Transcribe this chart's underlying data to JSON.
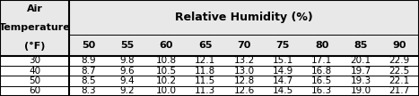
{
  "col_header_main": "Relative Humidity (%)",
  "col_header_sub": [
    "50",
    "55",
    "60",
    "65",
    "70",
    "75",
    "80",
    "85",
    "90"
  ],
  "row_header_label": [
    "Air",
    "Temperature",
    "(°F)"
  ],
  "row_labels": [
    "30",
    "40",
    "50",
    "60"
  ],
  "table_data": [
    [
      8.9,
      9.8,
      10.8,
      12.1,
      13.2,
      15.1,
      17.1,
      20.1,
      22.9
    ],
    [
      8.7,
      9.6,
      10.5,
      11.8,
      13.0,
      14.9,
      16.8,
      19.7,
      22.5
    ],
    [
      8.5,
      9.4,
      10.2,
      11.5,
      12.8,
      14.7,
      16.5,
      19.3,
      22.1
    ],
    [
      8.3,
      9.2,
      10.0,
      11.3,
      12.6,
      14.5,
      16.3,
      19.0,
      21.7
    ]
  ],
  "bg_color": "#ffffff",
  "header_bg": "#e8e8e8",
  "line_color": "#000000",
  "font_size_header": 8.0,
  "font_size_data": 7.5,
  "font_size_col_main": 9.0
}
